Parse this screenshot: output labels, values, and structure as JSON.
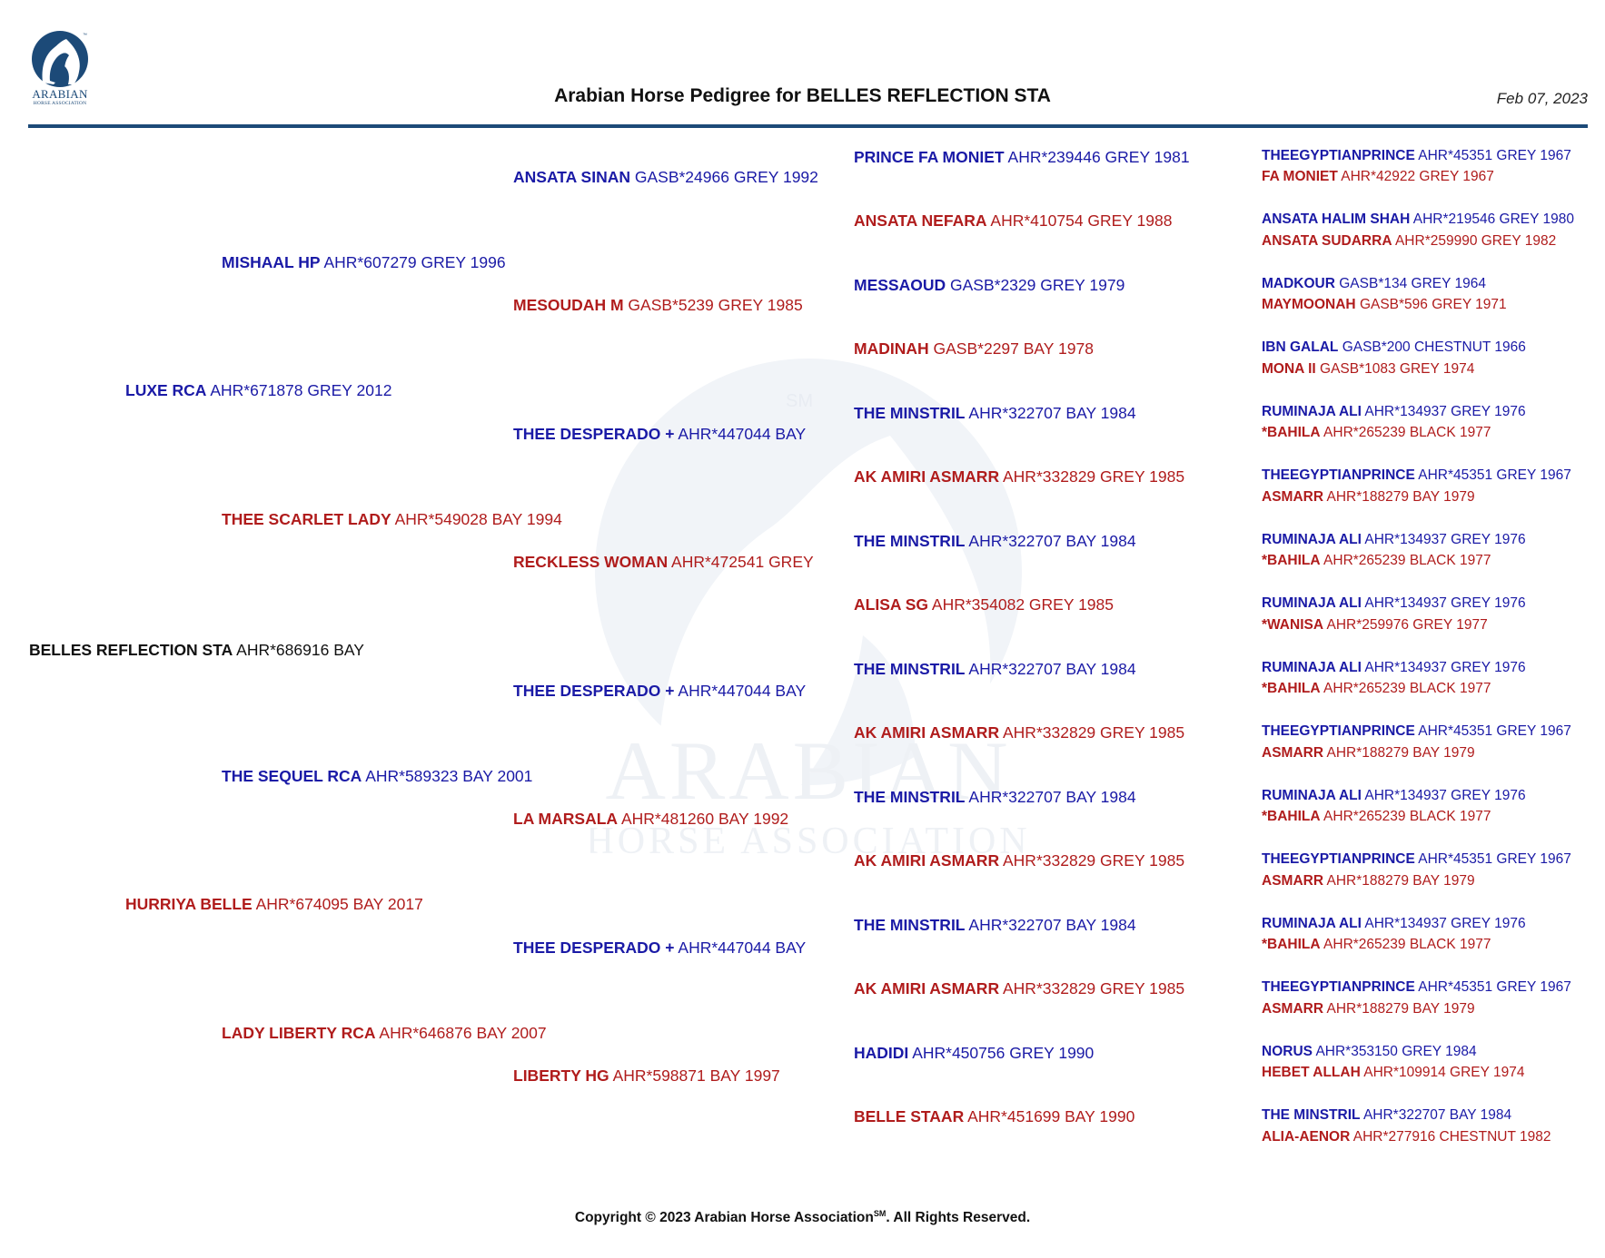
{
  "header": {
    "logo_text": "ARABIAN",
    "logo_subtext": "HORSE ASSOCIATION",
    "title": "Arabian Horse Pedigree for BELLES REFLECTION STA",
    "date": "Feb 07, 2023"
  },
  "watermark": {
    "line1": "ARABIAN",
    "line2": "HORSE ASSOCIATION",
    "mark": "SM"
  },
  "footer": {
    "copyright_prefix": "Copyright © 2023 Arabian Horse Association",
    "copyright_mark": "SM",
    "copyright_suffix": ".  All Rights Reserved."
  },
  "pedigree": {
    "subject": {
      "name": "BELLES REFLECTION STA",
      "info": "AHR*686916 BAY"
    },
    "gen1": [
      {
        "name": "LUXE RCA",
        "info": "AHR*671878 GREY 2012"
      },
      {
        "name": "HURRIYA BELLE",
        "info": "AHR*674095 BAY 2017"
      }
    ],
    "gen2": [
      {
        "name": "MISHAAL HP",
        "info": "AHR*607279 GREY 1996"
      },
      {
        "name": "THEE SCARLET LADY",
        "info": "AHR*549028 BAY 1994"
      },
      {
        "name": "THE SEQUEL RCA",
        "info": "AHR*589323 BAY 2001"
      },
      {
        "name": "LADY LIBERTY RCA",
        "info": "AHR*646876 BAY 2007"
      }
    ],
    "gen3": [
      {
        "name": "ANSATA SINAN",
        "info": "GASB*24966 GREY 1992"
      },
      {
        "name": "MESOUDAH M",
        "info": "GASB*5239 GREY 1985"
      },
      {
        "name": "THEE DESPERADO +",
        "info": "AHR*447044 BAY"
      },
      {
        "name": "RECKLESS WOMAN",
        "info": "AHR*472541 GREY"
      },
      {
        "name": "THEE DESPERADO +",
        "info": "AHR*447044 BAY"
      },
      {
        "name": "LA MARSALA",
        "info": "AHR*481260 BAY 1992"
      },
      {
        "name": "THEE DESPERADO +",
        "info": "AHR*447044 BAY"
      },
      {
        "name": "LIBERTY HG",
        "info": "AHR*598871 BAY 1997"
      }
    ],
    "gen4": [
      {
        "name": "PRINCE FA MONIET",
        "info": "AHR*239446 GREY 1981"
      },
      {
        "name": "ANSATA NEFARA",
        "info": "AHR*410754 GREY 1988"
      },
      {
        "name": "MESSAOUD",
        "info": "GASB*2329 GREY 1979"
      },
      {
        "name": "MADINAH",
        "info": "GASB*2297 BAY 1978"
      },
      {
        "name": "THE MINSTRIL",
        "info": "AHR*322707 BAY 1984"
      },
      {
        "name": "AK AMIRI ASMARR",
        "info": "AHR*332829 GREY 1985"
      },
      {
        "name": "THE MINSTRIL",
        "info": "AHR*322707 BAY 1984"
      },
      {
        "name": "ALISA SG",
        "info": "AHR*354082 GREY 1985"
      },
      {
        "name": "THE MINSTRIL",
        "info": "AHR*322707 BAY 1984"
      },
      {
        "name": "AK AMIRI ASMARR",
        "info": "AHR*332829 GREY 1985"
      },
      {
        "name": "THE MINSTRIL",
        "info": "AHR*322707 BAY 1984"
      },
      {
        "name": "AK AMIRI ASMARR",
        "info": "AHR*332829 GREY 1985"
      },
      {
        "name": "THE MINSTRIL",
        "info": "AHR*322707 BAY 1984"
      },
      {
        "name": "AK AMIRI ASMARR",
        "info": "AHR*332829 GREY 1985"
      },
      {
        "name": "HADIDI",
        "info": "AHR*450756 GREY 1990"
      },
      {
        "name": "BELLE STAAR",
        "info": "AHR*451699 BAY 1990"
      }
    ],
    "gen5": [
      {
        "name": "THEEGYPTIANPRINCE",
        "info": "AHR*45351 GREY 1967"
      },
      {
        "name": "FA MONIET",
        "info": "AHR*42922 GREY 1967"
      },
      {
        "name": "ANSATA HALIM SHAH",
        "info": "AHR*219546 GREY 1980"
      },
      {
        "name": "ANSATA SUDARRA",
        "info": "AHR*259990 GREY 1982"
      },
      {
        "name": "MADKOUR",
        "info": "GASB*134 GREY 1964"
      },
      {
        "name": "MAYMOONAH",
        "info": "GASB*596 GREY 1971"
      },
      {
        "name": "IBN GALAL",
        "info": "GASB*200 CHESTNUT 1966"
      },
      {
        "name": "MONA II",
        "info": "GASB*1083 GREY 1974"
      },
      {
        "name": "RUMINAJA ALI",
        "info": "AHR*134937 GREY 1976"
      },
      {
        "name": "*BAHILA",
        "info": "AHR*265239 BLACK 1977"
      },
      {
        "name": "THEEGYPTIANPRINCE",
        "info": "AHR*45351 GREY 1967"
      },
      {
        "name": "ASMARR",
        "info": "AHR*188279 BAY 1979"
      },
      {
        "name": "RUMINAJA ALI",
        "info": "AHR*134937 GREY 1976"
      },
      {
        "name": "*BAHILA",
        "info": "AHR*265239 BLACK 1977"
      },
      {
        "name": "RUMINAJA ALI",
        "info": "AHR*134937 GREY 1976"
      },
      {
        "name": "*WANISA",
        "info": "AHR*259976 GREY 1977"
      },
      {
        "name": "RUMINAJA ALI",
        "info": "AHR*134937 GREY 1976"
      },
      {
        "name": "*BAHILA",
        "info": "AHR*265239 BLACK 1977"
      },
      {
        "name": "THEEGYPTIANPRINCE",
        "info": "AHR*45351 GREY 1967"
      },
      {
        "name": "ASMARR",
        "info": "AHR*188279 BAY 1979"
      },
      {
        "name": "RUMINAJA ALI",
        "info": "AHR*134937 GREY 1976"
      },
      {
        "name": "*BAHILA",
        "info": "AHR*265239 BLACK 1977"
      },
      {
        "name": "THEEGYPTIANPRINCE",
        "info": "AHR*45351 GREY 1967"
      },
      {
        "name": "ASMARR",
        "info": "AHR*188279 BAY 1979"
      },
      {
        "name": "RUMINAJA ALI",
        "info": "AHR*134937 GREY 1976"
      },
      {
        "name": "*BAHILA",
        "info": "AHR*265239 BLACK 1977"
      },
      {
        "name": "THEEGYPTIANPRINCE",
        "info": "AHR*45351 GREY 1967"
      },
      {
        "name": "ASMARR",
        "info": "AHR*188279 BAY 1979"
      },
      {
        "name": "NORUS",
        "info": "AHR*353150 GREY 1984"
      },
      {
        "name": "HEBET ALLAH",
        "info": "AHR*109914 GREY 1974"
      },
      {
        "name": "THE MINSTRIL",
        "info": "AHR*322707 BAY 1984"
      },
      {
        "name": "ALIA-AENOR",
        "info": "AHR*277916 CHESTNUT 1982"
      }
    ]
  },
  "colors": {
    "sire": "#1a1aa6",
    "dam": "#b01c1c",
    "accent": "#1c4a78"
  }
}
